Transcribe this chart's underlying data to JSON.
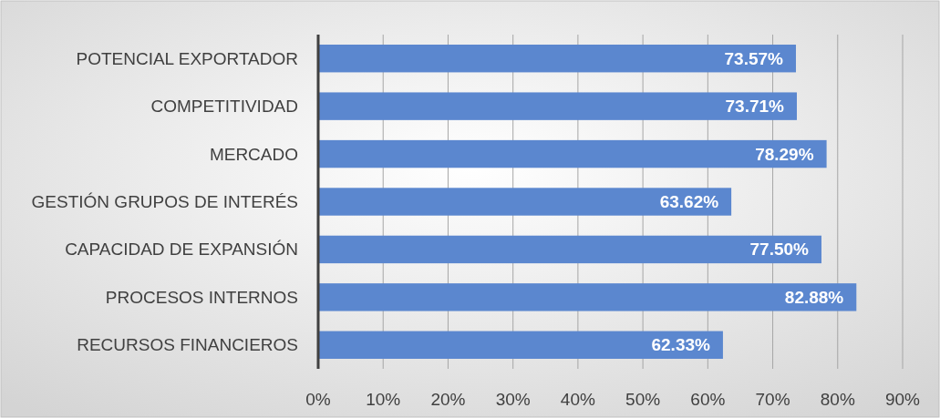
{
  "chart_data": {
    "type": "bar",
    "orientation": "horizontal",
    "categories": [
      "POTENCIAL EXPORTADOR",
      "COMPETITIVIDAD",
      "MERCADO",
      "GESTIÓN GRUPOS DE INTERÉS",
      "CAPACIDAD DE EXPANSIÓN",
      "PROCESOS INTERNOS",
      "RECURSOS FINANCIEROS"
    ],
    "values": [
      73.57,
      73.71,
      78.29,
      63.62,
      77.5,
      82.88,
      62.33
    ],
    "value_labels": [
      "73.57%",
      "73.71%",
      "78.29%",
      "63.62%",
      "77.50%",
      "82.88%",
      "62.33%"
    ],
    "color": "#5b87cf",
    "xlim": [
      0,
      90
    ],
    "xticks": [
      {
        "value": 0,
        "label": "0%"
      },
      {
        "value": 10,
        "label": "10%"
      },
      {
        "value": 20,
        "label": "20%"
      },
      {
        "value": 30,
        "label": "30%"
      },
      {
        "value": 40,
        "label": "40%"
      },
      {
        "value": 50,
        "label": "50%"
      },
      {
        "value": 60,
        "label": "60%"
      },
      {
        "value": 70,
        "label": "70%"
      },
      {
        "value": 80,
        "label": "80%"
      },
      {
        "value": 90,
        "label": "90%"
      }
    ],
    "grid": "x"
  }
}
